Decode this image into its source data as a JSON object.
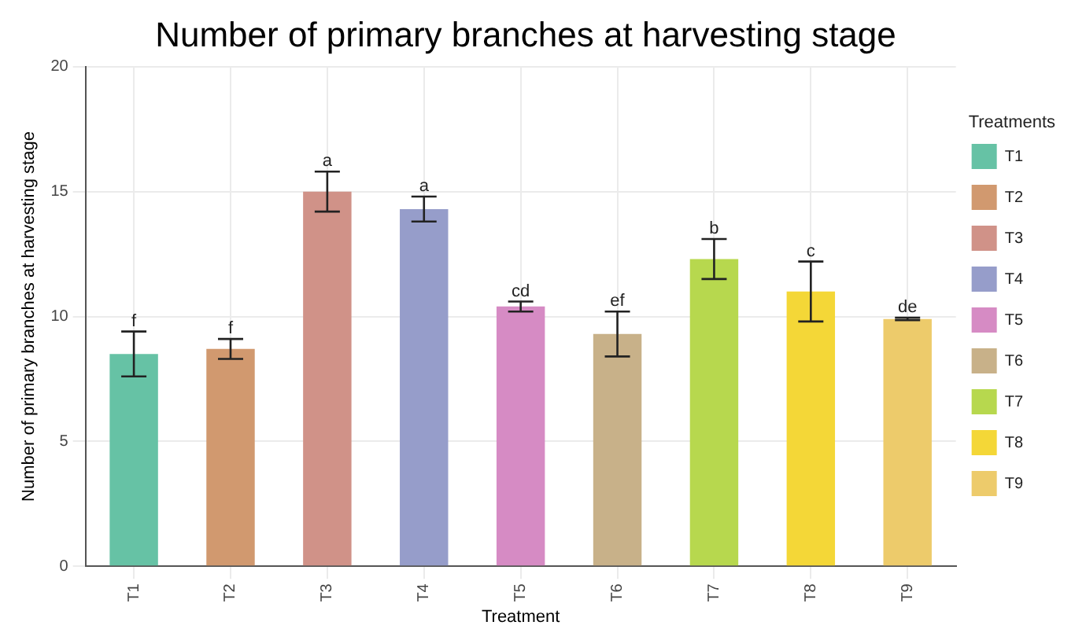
{
  "chart_data": {
    "type": "bar",
    "title": "Number of primary branches at harvesting stage",
    "xlabel": "Treatment",
    "ylabel": "Number of primary branches at harvesting stage",
    "legend_title": "Treatments",
    "categories": [
      "T1",
      "T2",
      "T3",
      "T4",
      "T5",
      "T6",
      "T7",
      "T8",
      "T9"
    ],
    "series": [
      {
        "name": "T1",
        "color": "#66c2a5",
        "values": [
          8.5,
          null,
          null,
          null,
          null,
          null,
          null,
          null,
          null
        ],
        "errors": [
          0.9,
          null,
          null,
          null,
          null,
          null,
          null,
          null,
          null
        ]
      },
      {
        "name": "T2",
        "color": "#d1996f",
        "values": [
          null,
          8.7,
          null,
          null,
          null,
          null,
          null,
          null,
          null
        ],
        "errors": [
          null,
          0.4,
          null,
          null,
          null,
          null,
          null,
          null,
          null
        ]
      },
      {
        "name": "T3",
        "color": "#d09288",
        "values": [
          null,
          null,
          15.0,
          null,
          null,
          null,
          null,
          null,
          null
        ],
        "errors": [
          null,
          null,
          0.8,
          null,
          null,
          null,
          null,
          null,
          null
        ]
      },
      {
        "name": "T4",
        "color": "#969dca",
        "values": [
          null,
          null,
          null,
          14.3,
          null,
          null,
          null,
          null,
          null
        ],
        "errors": [
          null,
          null,
          null,
          0.5,
          null,
          null,
          null,
          null,
          null
        ]
      },
      {
        "name": "T5",
        "color": "#d68bc4",
        "values": [
          null,
          null,
          null,
          null,
          10.4,
          null,
          null,
          null,
          null
        ],
        "errors": [
          null,
          null,
          null,
          null,
          0.2,
          null,
          null,
          null,
          null
        ]
      },
      {
        "name": "T6",
        "color": "#c8b189",
        "values": [
          null,
          null,
          null,
          null,
          null,
          9.3,
          null,
          null,
          null
        ],
        "errors": [
          null,
          null,
          null,
          null,
          null,
          0.9,
          null,
          null,
          null
        ]
      },
      {
        "name": "T7",
        "color": "#b7d84e",
        "values": [
          null,
          null,
          null,
          null,
          null,
          null,
          12.3,
          null,
          null
        ],
        "errors": [
          null,
          null,
          null,
          null,
          null,
          null,
          0.8,
          null,
          null
        ]
      },
      {
        "name": "T8",
        "color": "#f4d737",
        "values": [
          null,
          null,
          null,
          null,
          null,
          null,
          null,
          11.0,
          null
        ],
        "errors": [
          null,
          null,
          null,
          null,
          null,
          null,
          null,
          1.2,
          null
        ]
      },
      {
        "name": "T9",
        "color": "#edcb6b",
        "values": [
          null,
          null,
          null,
          null,
          null,
          null,
          null,
          null,
          9.9
        ],
        "errors": [
          null,
          null,
          null,
          null,
          null,
          null,
          null,
          null,
          0.05
        ]
      }
    ],
    "ylim": [
      0,
      20
    ],
    "yticks": [
      0,
      5,
      10,
      15,
      20
    ],
    "grid": true,
    "legend": "right",
    "annotations": [
      {
        "text": "f",
        "x": "T1",
        "y": 9.4
      },
      {
        "text": "f",
        "x": "T2",
        "y": 9.1
      },
      {
        "text": "a",
        "x": "T3",
        "y": 15.8
      },
      {
        "text": "a",
        "x": "T4",
        "y": 14.8
      },
      {
        "text": "cd",
        "x": "T5",
        "y": 10.6
      },
      {
        "text": "ef",
        "x": "T6",
        "y": 10.2
      },
      {
        "text": "b",
        "x": "T7",
        "y": 13.1
      },
      {
        "text": "c",
        "x": "T8",
        "y": 12.2
      },
      {
        "text": "de",
        "x": "T9",
        "y": 9.95
      }
    ]
  }
}
